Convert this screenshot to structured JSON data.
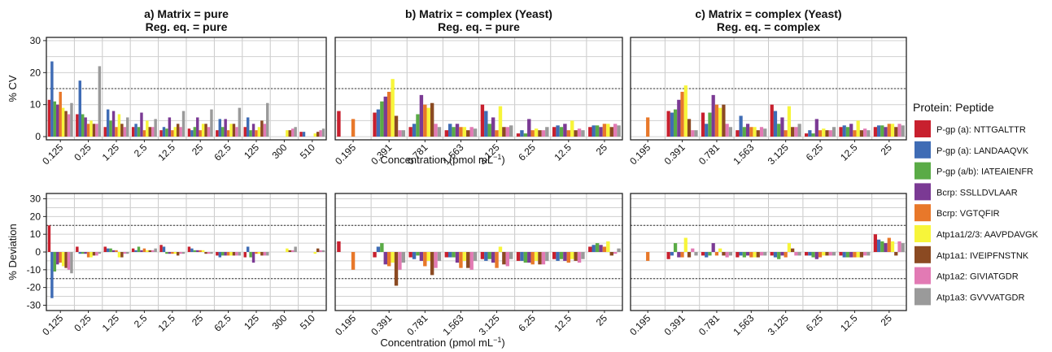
{
  "legend": {
    "title": "Protein: Peptide",
    "entries": [
      {
        "label": "P-gp (a): NTTGALTTR",
        "color": "#c8202e"
      },
      {
        "label": "P-gp (a): LANDAAQVK",
        "color": "#3f6cb5"
      },
      {
        "label": "P-gp (a/b): IATEAIENFR",
        "color": "#5aab46"
      },
      {
        "label": "Bcrp: SSLLDVLAAR",
        "color": "#7b3a94"
      },
      {
        "label": "Bcrp: VGTQFIR",
        "color": "#e8782a"
      },
      {
        "label": "Atp1a1/2/3: AAVPDAVGK",
        "color": "#f7f53a"
      },
      {
        "label": "Atp1a1: IVEIPFNSTNK",
        "color": "#8b4a22"
      },
      {
        "label": "Atp1a2: GIVIATGDR",
        "color": "#e27ab4"
      },
      {
        "label": "Atp1a3: GVVVATGDR",
        "color": "#9a9a9a"
      }
    ]
  },
  "xlabel_text": "Concentration (pmol mL",
  "xlabel_sup": "−1",
  "xlabel_close": ")",
  "chart_data": [
    {
      "type": "bar",
      "title": "a) Matrix = pure",
      "subtitle": "Reg. eq. = pure",
      "ylabel": "% CV",
      "ylim": [
        -1,
        31
      ],
      "yticks": [
        0,
        10,
        20,
        30
      ],
      "reference_lines": [
        15
      ],
      "categories": [
        "0.125",
        "0.25",
        "1.25",
        "2.5",
        "12.5",
        "25",
        "62.5",
        "125",
        "300",
        "510"
      ],
      "series": [
        {
          "name": "P-gp (a): NTTGALTTR",
          "values": [
            11.5,
            7,
            3,
            3,
            2,
            2.5,
            2,
            3,
            null,
            1.5
          ]
        },
        {
          "name": "P-gp (a): LANDAAQVK",
          "values": [
            23.5,
            17.5,
            8.5,
            4,
            3,
            2,
            5.5,
            6,
            null,
            1.5
          ]
        },
        {
          "name": "P-gp (a/b): IATEAIENFR",
          "values": [
            11,
            7,
            5,
            3,
            2.5,
            3,
            3,
            2,
            null,
            null
          ]
        },
        {
          "name": "Bcrp: SSLLDVLAAR",
          "values": [
            10,
            6,
            8,
            7.5,
            6,
            6,
            5.5,
            4,
            null,
            null
          ]
        },
        {
          "name": "Bcrp: VGTQFIR",
          "values": [
            14,
            4,
            3,
            2,
            2,
            2,
            2,
            2,
            null,
            null
          ]
        },
        {
          "name": "Atp1a1/2/3: AAVPDAVGK",
          "values": [
            9,
            5,
            7,
            5,
            3,
            4,
            4,
            3,
            2,
            1
          ]
        },
        {
          "name": "Atp1a1: IVEIPFNSTNK",
          "values": [
            8,
            4,
            4,
            3,
            4,
            4,
            4,
            5,
            2,
            1.5
          ]
        },
        {
          "name": "Atp1a2: GIVIATGDR",
          "values": [
            7,
            4,
            3,
            3,
            3,
            3,
            3,
            4,
            2.5,
            2
          ]
        },
        {
          "name": "Atp1a3: GVVVATGDR",
          "values": [
            10.5,
            22,
            6,
            5.5,
            8,
            8.5,
            9,
            10.5,
            3,
            2.5
          ]
        }
      ]
    },
    {
      "type": "bar",
      "title": "b) Matrix = complex (Yeast)",
      "subtitle": "Reg. eq. = pure",
      "ylabel": "% CV",
      "ylim": [
        -1,
        31
      ],
      "yticks": [
        0,
        10,
        20,
        30
      ],
      "reference_lines": [
        15
      ],
      "categories": [
        "0.195",
        "0.391",
        "0.781",
        "1.563",
        "3.125",
        "6.25",
        "12.5",
        "25"
      ],
      "series": [
        {
          "name": "P-gp (a): NTTGALTTR",
          "values": [
            8,
            7.5,
            3,
            2,
            10,
            1,
            3,
            3
          ]
        },
        {
          "name": "P-gp (a): LANDAAQVK",
          "values": [
            null,
            8.5,
            4,
            4,
            8,
            2,
            3.5,
            3.5
          ]
        },
        {
          "name": "P-gp (a/b): IATEAIENFR",
          "values": [
            null,
            11,
            7,
            3,
            4,
            1,
            3,
            3.5
          ]
        },
        {
          "name": "Bcrp: SSLLDVLAAR",
          "values": [
            null,
            12.5,
            13,
            4,
            6,
            5.5,
            4,
            3
          ]
        },
        {
          "name": "Bcrp: VGTQFIR",
          "values": [
            5.5,
            14,
            10,
            3,
            2,
            2,
            2,
            4
          ]
        },
        {
          "name": "Atp1a1/2/3: AAVPDAVGK",
          "values": [
            null,
            18,
            9,
            3,
            9.5,
            2.5,
            5,
            4
          ]
        },
        {
          "name": "Atp1a1: IVEIPFNSTNK",
          "values": [
            null,
            6.5,
            10.5,
            2,
            3,
            2,
            2,
            3
          ]
        },
        {
          "name": "Atp1a2: GIVIATGDR",
          "values": [
            null,
            2,
            4,
            3,
            3,
            2,
            2.5,
            4
          ]
        },
        {
          "name": "Atp1a3: GVVVATGDR",
          "values": [
            null,
            2,
            3,
            2.5,
            3.5,
            3,
            2,
            3.5
          ]
        }
      ]
    },
    {
      "type": "bar",
      "title": "c) Matrix = complex (Yeast)",
      "subtitle": "Reg. eq. = complex",
      "ylabel": "% CV",
      "ylim": [
        -1,
        31
      ],
      "yticks": [
        0,
        10,
        20,
        30
      ],
      "reference_lines": [
        15
      ],
      "categories": [
        "0.195",
        "0.391",
        "0.781",
        "1.563",
        "3.125",
        "6.25",
        "12.5",
        "25"
      ],
      "series": [
        {
          "name": "P-gp (a): NTTGALTTR",
          "values": [
            null,
            8,
            7.5,
            2,
            10,
            1,
            3,
            3
          ]
        },
        {
          "name": "P-gp (a): LANDAAQVK",
          "values": [
            null,
            7.5,
            4,
            6.5,
            8,
            2,
            3.5,
            3.5
          ]
        },
        {
          "name": "P-gp (a/b): IATEAIENFR",
          "values": [
            null,
            8.5,
            7.5,
            3,
            4,
            1,
            3,
            3.5
          ]
        },
        {
          "name": "Bcrp: SSLLDVLAAR",
          "values": [
            null,
            11.5,
            13,
            4,
            6,
            5.5,
            4,
            3
          ]
        },
        {
          "name": "Bcrp: VGTQFIR",
          "values": [
            6,
            14,
            10,
            3,
            2,
            2,
            2,
            4
          ]
        },
        {
          "name": "Atp1a1/2/3: AAVPDAVGK",
          "values": [
            null,
            16,
            9,
            3,
            9.5,
            2.5,
            5,
            4
          ]
        },
        {
          "name": "Atp1a1: IVEIPFNSTNK",
          "values": [
            null,
            5.5,
            10,
            2,
            3,
            2,
            2,
            3
          ]
        },
        {
          "name": "Atp1a2: GIVIATGDR",
          "values": [
            null,
            2,
            4,
            3,
            3,
            2,
            2.5,
            4
          ]
        },
        {
          "name": "Atp1a3: GVVVATGDR",
          "values": [
            null,
            2,
            3,
            2.5,
            4,
            3,
            2,
            3.5
          ]
        }
      ]
    },
    {
      "type": "bar",
      "title": "",
      "subtitle": "",
      "ylabel": "% Deviation",
      "ylim": [
        -33,
        33
      ],
      "yticks": [
        -30,
        -20,
        -10,
        0,
        10,
        20,
        30
      ],
      "reference_lines": [
        15,
        -15
      ],
      "categories": [
        "0.125",
        "0.25",
        "1.25",
        "2.5",
        "12.5",
        "25",
        "62.5",
        "125",
        "300",
        "510"
      ],
      "series": [
        {
          "name": "P-gp (a): NTTGALTTR",
          "values": [
            15,
            3,
            3,
            2,
            4,
            3,
            -2,
            -3,
            null,
            null
          ]
        },
        {
          "name": "P-gp (a): LANDAAQVK",
          "values": [
            -26,
            -1,
            2,
            1,
            3,
            2,
            -3,
            3,
            null,
            null
          ]
        },
        {
          "name": "P-gp (a/b): IATEAIENFR",
          "values": [
            -11,
            -1,
            2,
            3,
            -1,
            1,
            -2,
            -3,
            null,
            null
          ]
        },
        {
          "name": "Bcrp: SSLLDVLAAR",
          "values": [
            -7,
            -1,
            1,
            1,
            -1,
            1,
            -2,
            -6,
            null,
            null
          ]
        },
        {
          "name": "Bcrp: VGTQFIR",
          "values": [
            -6,
            -3,
            1,
            2,
            -1,
            1,
            -2,
            -1,
            null,
            null
          ]
        },
        {
          "name": "Atp1a1/2/3: AAVPDAVGK",
          "values": [
            -8,
            -3,
            -3,
            1,
            -1,
            1,
            -2,
            -1,
            2,
            -1
          ]
        },
        {
          "name": "Atp1a1: IVEIPFNSTNK",
          "values": [
            -9,
            -2,
            -3,
            1,
            -2,
            -1,
            -2,
            -2,
            1,
            2
          ]
        },
        {
          "name": "Atp1a2: GIVIATGDR",
          "values": [
            -10,
            -2,
            -1,
            1,
            -1,
            -1,
            -2,
            -2,
            1,
            1
          ]
        },
        {
          "name": "Atp1a3: GVVVATGDR",
          "values": [
            -12,
            -1,
            -1,
            2,
            -1,
            -1,
            -2,
            -2,
            3,
            1
          ]
        }
      ]
    },
    {
      "type": "bar",
      "title": "",
      "subtitle": "",
      "ylabel": "% Deviation",
      "ylim": [
        -33,
        33
      ],
      "yticks": [
        -30,
        -20,
        -10,
        0,
        10,
        20,
        30
      ],
      "reference_lines": [
        15,
        -15
      ],
      "categories": [
        "0.195",
        "0.391",
        "0.781",
        "1.563",
        "3.125",
        "6.25",
        "12.5",
        "25"
      ],
      "series": [
        {
          "name": "P-gp (a): NTTGALTTR",
          "values": [
            6,
            -3,
            -3,
            -3,
            -4,
            -5,
            -4,
            3
          ]
        },
        {
          "name": "P-gp (a): LANDAAQVK",
          "values": [
            null,
            3,
            -4,
            -3,
            -5,
            -5,
            -5,
            4
          ]
        },
        {
          "name": "P-gp (a/b): IATEAIENFR",
          "values": [
            null,
            5,
            -2,
            -3,
            -4,
            -6,
            -4,
            5
          ]
        },
        {
          "name": "Bcrp: SSLLDVLAAR",
          "values": [
            null,
            -7,
            -5,
            -6,
            -6,
            -6,
            -5,
            4
          ]
        },
        {
          "name": "Bcrp: VGTQFIR",
          "values": [
            -10,
            -8,
            -8,
            -9,
            -9,
            -7,
            -6,
            3
          ]
        },
        {
          "name": "Atp1a1/2/3: AAVPDAVGK",
          "values": [
            null,
            -6,
            -5,
            -5,
            3,
            -5,
            -4,
            6
          ]
        },
        {
          "name": "Atp1a1: IVEIPFNSTNK",
          "values": [
            null,
            -19,
            -13,
            -9,
            -7,
            -7,
            -5,
            -2
          ]
        },
        {
          "name": "Atp1a2: GIVIATGDR",
          "values": [
            null,
            -10,
            -9,
            -10,
            -8,
            -7,
            -6,
            -1
          ]
        },
        {
          "name": "Atp1a3: GVVVATGDR",
          "values": [
            null,
            -6,
            -5,
            -5,
            -4,
            -5,
            -4,
            2
          ]
        }
      ]
    },
    {
      "type": "bar",
      "title": "",
      "subtitle": "",
      "ylabel": "% Deviation",
      "ylim": [
        -33,
        33
      ],
      "yticks": [
        -30,
        -20,
        -10,
        0,
        10,
        20,
        30
      ],
      "reference_lines": [
        15,
        -15
      ],
      "categories": [
        "0.195",
        "0.391",
        "0.781",
        "1.563",
        "3.125",
        "6.25",
        "12.5",
        "25"
      ],
      "series": [
        {
          "name": "P-gp (a): NTTGALTTR",
          "values": [
            null,
            -4,
            -2,
            -3,
            -2,
            -2,
            -2,
            10
          ]
        },
        {
          "name": "P-gp (a): LANDAAQVK",
          "values": [
            null,
            -2,
            -3,
            -2,
            -3,
            -2,
            -3,
            7
          ]
        },
        {
          "name": "P-gp (a/b): IATEAIENFR",
          "values": [
            null,
            5,
            -2,
            -3,
            -4,
            -3,
            -3,
            6
          ]
        },
        {
          "name": "Bcrp: SSLLDVLAAR",
          "values": [
            null,
            -3,
            5,
            -2,
            -2,
            -4,
            -3,
            5
          ]
        },
        {
          "name": "Bcrp: VGTQFIR",
          "values": [
            -5,
            -3,
            -2,
            -3,
            -3,
            -3,
            -3,
            8
          ]
        },
        {
          "name": "Atp1a1/2/3: AAVPDAVGK",
          "values": [
            null,
            8,
            2,
            -3,
            5,
            -2,
            -3,
            6
          ]
        },
        {
          "name": "Atp1a1: IVEIPFNSTNK",
          "values": [
            null,
            -3,
            -2,
            -3,
            2,
            -2,
            -3,
            -2
          ]
        },
        {
          "name": "Atp1a2: GIVIATGDR",
          "values": [
            null,
            2,
            -3,
            -2,
            -2,
            -2,
            -2,
            6
          ]
        },
        {
          "name": "Atp1a3: GVVVATGDR",
          "values": [
            null,
            -2,
            -2,
            -2,
            -2,
            -2,
            -2,
            5
          ]
        }
      ]
    }
  ]
}
